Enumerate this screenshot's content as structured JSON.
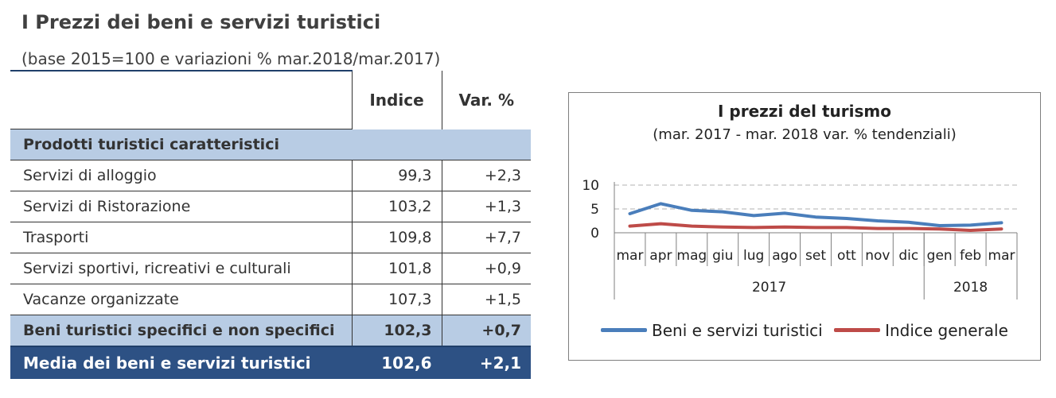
{
  "header": {
    "title": "I Prezzi dei beni e servizi turistici",
    "subtitle": "(base 2015=100 e variazioni % mar.2018/mar.2017)"
  },
  "table": {
    "columns": [
      "Indice",
      "Var. %"
    ],
    "group_label": "Prodotti turistici caratteristici",
    "rows": [
      {
        "label": "Servizi di alloggio",
        "indice": "99,3",
        "var": "+2,3"
      },
      {
        "label": "Servizi di Ristorazione",
        "indice": "103,2",
        "var": "+1,3"
      },
      {
        "label": "Trasporti",
        "indice": "109,8",
        "var": "+7,7"
      },
      {
        "label": "Servizi sportivi, ricreativi e culturali",
        "indice": "101,8",
        "var": "+0,9"
      },
      {
        "label": "Vacanze organizzate",
        "indice": "107,3",
        "var": "+1,5"
      }
    ],
    "subtotal": {
      "label": "Beni turistici specifici e non specifici",
      "indice": "102,3",
      "var": "+0,7"
    },
    "total": {
      "label": "Media dei beni e servizi turistici",
      "indice": "102,6",
      "var": "+2,1"
    }
  },
  "chart_data": {
    "type": "line",
    "title": "I prezzi del turismo",
    "subtitle": "(mar. 2017 - mar. 2018 var. % tendenziali)",
    "categories": [
      "mar",
      "apr",
      "mag",
      "giu",
      "lug",
      "ago",
      "set",
      "ott",
      "nov",
      "dic",
      "gen",
      "feb",
      "mar"
    ],
    "year_groups": [
      {
        "label": "2017",
        "count": 10
      },
      {
        "label": "2018",
        "count": 3
      }
    ],
    "yticks": [
      0,
      5,
      10
    ],
    "ylim": [
      0,
      10
    ],
    "grid": "dashed horizontal",
    "legend_position": "bottom",
    "series": [
      {
        "name": "Beni e servizi turistici",
        "color": "#4a7ebb",
        "values": [
          4.0,
          6.1,
          4.7,
          4.4,
          3.6,
          4.1,
          3.3,
          3.0,
          2.5,
          2.2,
          1.5,
          1.6,
          2.1
        ]
      },
      {
        "name": "Indice generale",
        "color": "#be4b48",
        "values": [
          1.4,
          1.9,
          1.4,
          1.2,
          1.1,
          1.2,
          1.1,
          1.1,
          0.9,
          0.9,
          0.8,
          0.5,
          0.8
        ]
      }
    ]
  },
  "colors": {
    "group_band": "#b8cce4",
    "total_band": "#2d5184",
    "rule": "#1f3f6a"
  }
}
